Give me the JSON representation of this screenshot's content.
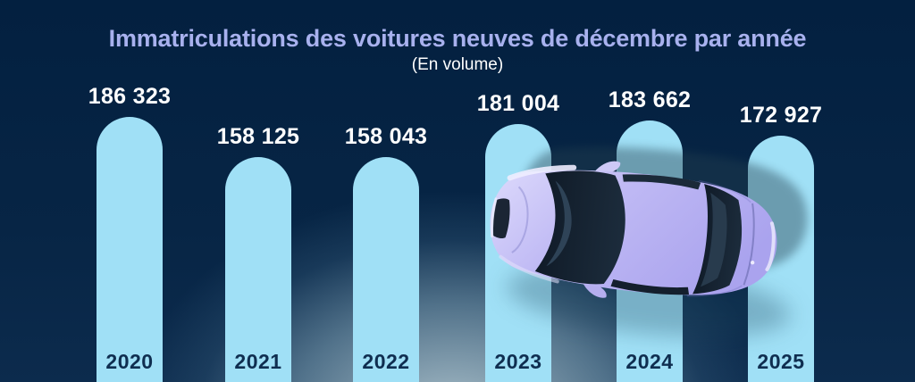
{
  "title": "Immatriculations des voitures neuves de décembre par année",
  "subtitle": "(En volume)",
  "chart_data": {
    "type": "bar",
    "title": "Immatriculations des voitures neuves de décembre par année",
    "subtitle": "(En volume)",
    "categories": [
      "2020",
      "2021",
      "2022",
      "2023",
      "2024",
      "2025"
    ],
    "values": [
      186323,
      158125,
      158043,
      181004,
      183662,
      172927
    ],
    "value_labels": [
      "186 323",
      "158 125",
      "158 043",
      "181 004",
      "183 662",
      "172 927"
    ],
    "xlabel": "",
    "ylabel": "",
    "ylim": [
      0,
      190000
    ],
    "grid": false,
    "legend": false,
    "orientation": "vertical",
    "bar_color": "#a0e0f6",
    "value_label_color": "#ffffff",
    "category_label_color": "#0f2e50"
  },
  "colors": {
    "background_top": "#032040",
    "background_bottom": "#0c2b4d",
    "glow": "#b2c7d0",
    "title": "#a8b1ee",
    "subtitle": "#ffffff",
    "bar": "#a0e0f6",
    "car_body": "#bfb9f4",
    "car_window": "#16222f"
  },
  "illustration": {
    "name": "car-top-view",
    "label": "lavender sedan viewed from above"
  }
}
